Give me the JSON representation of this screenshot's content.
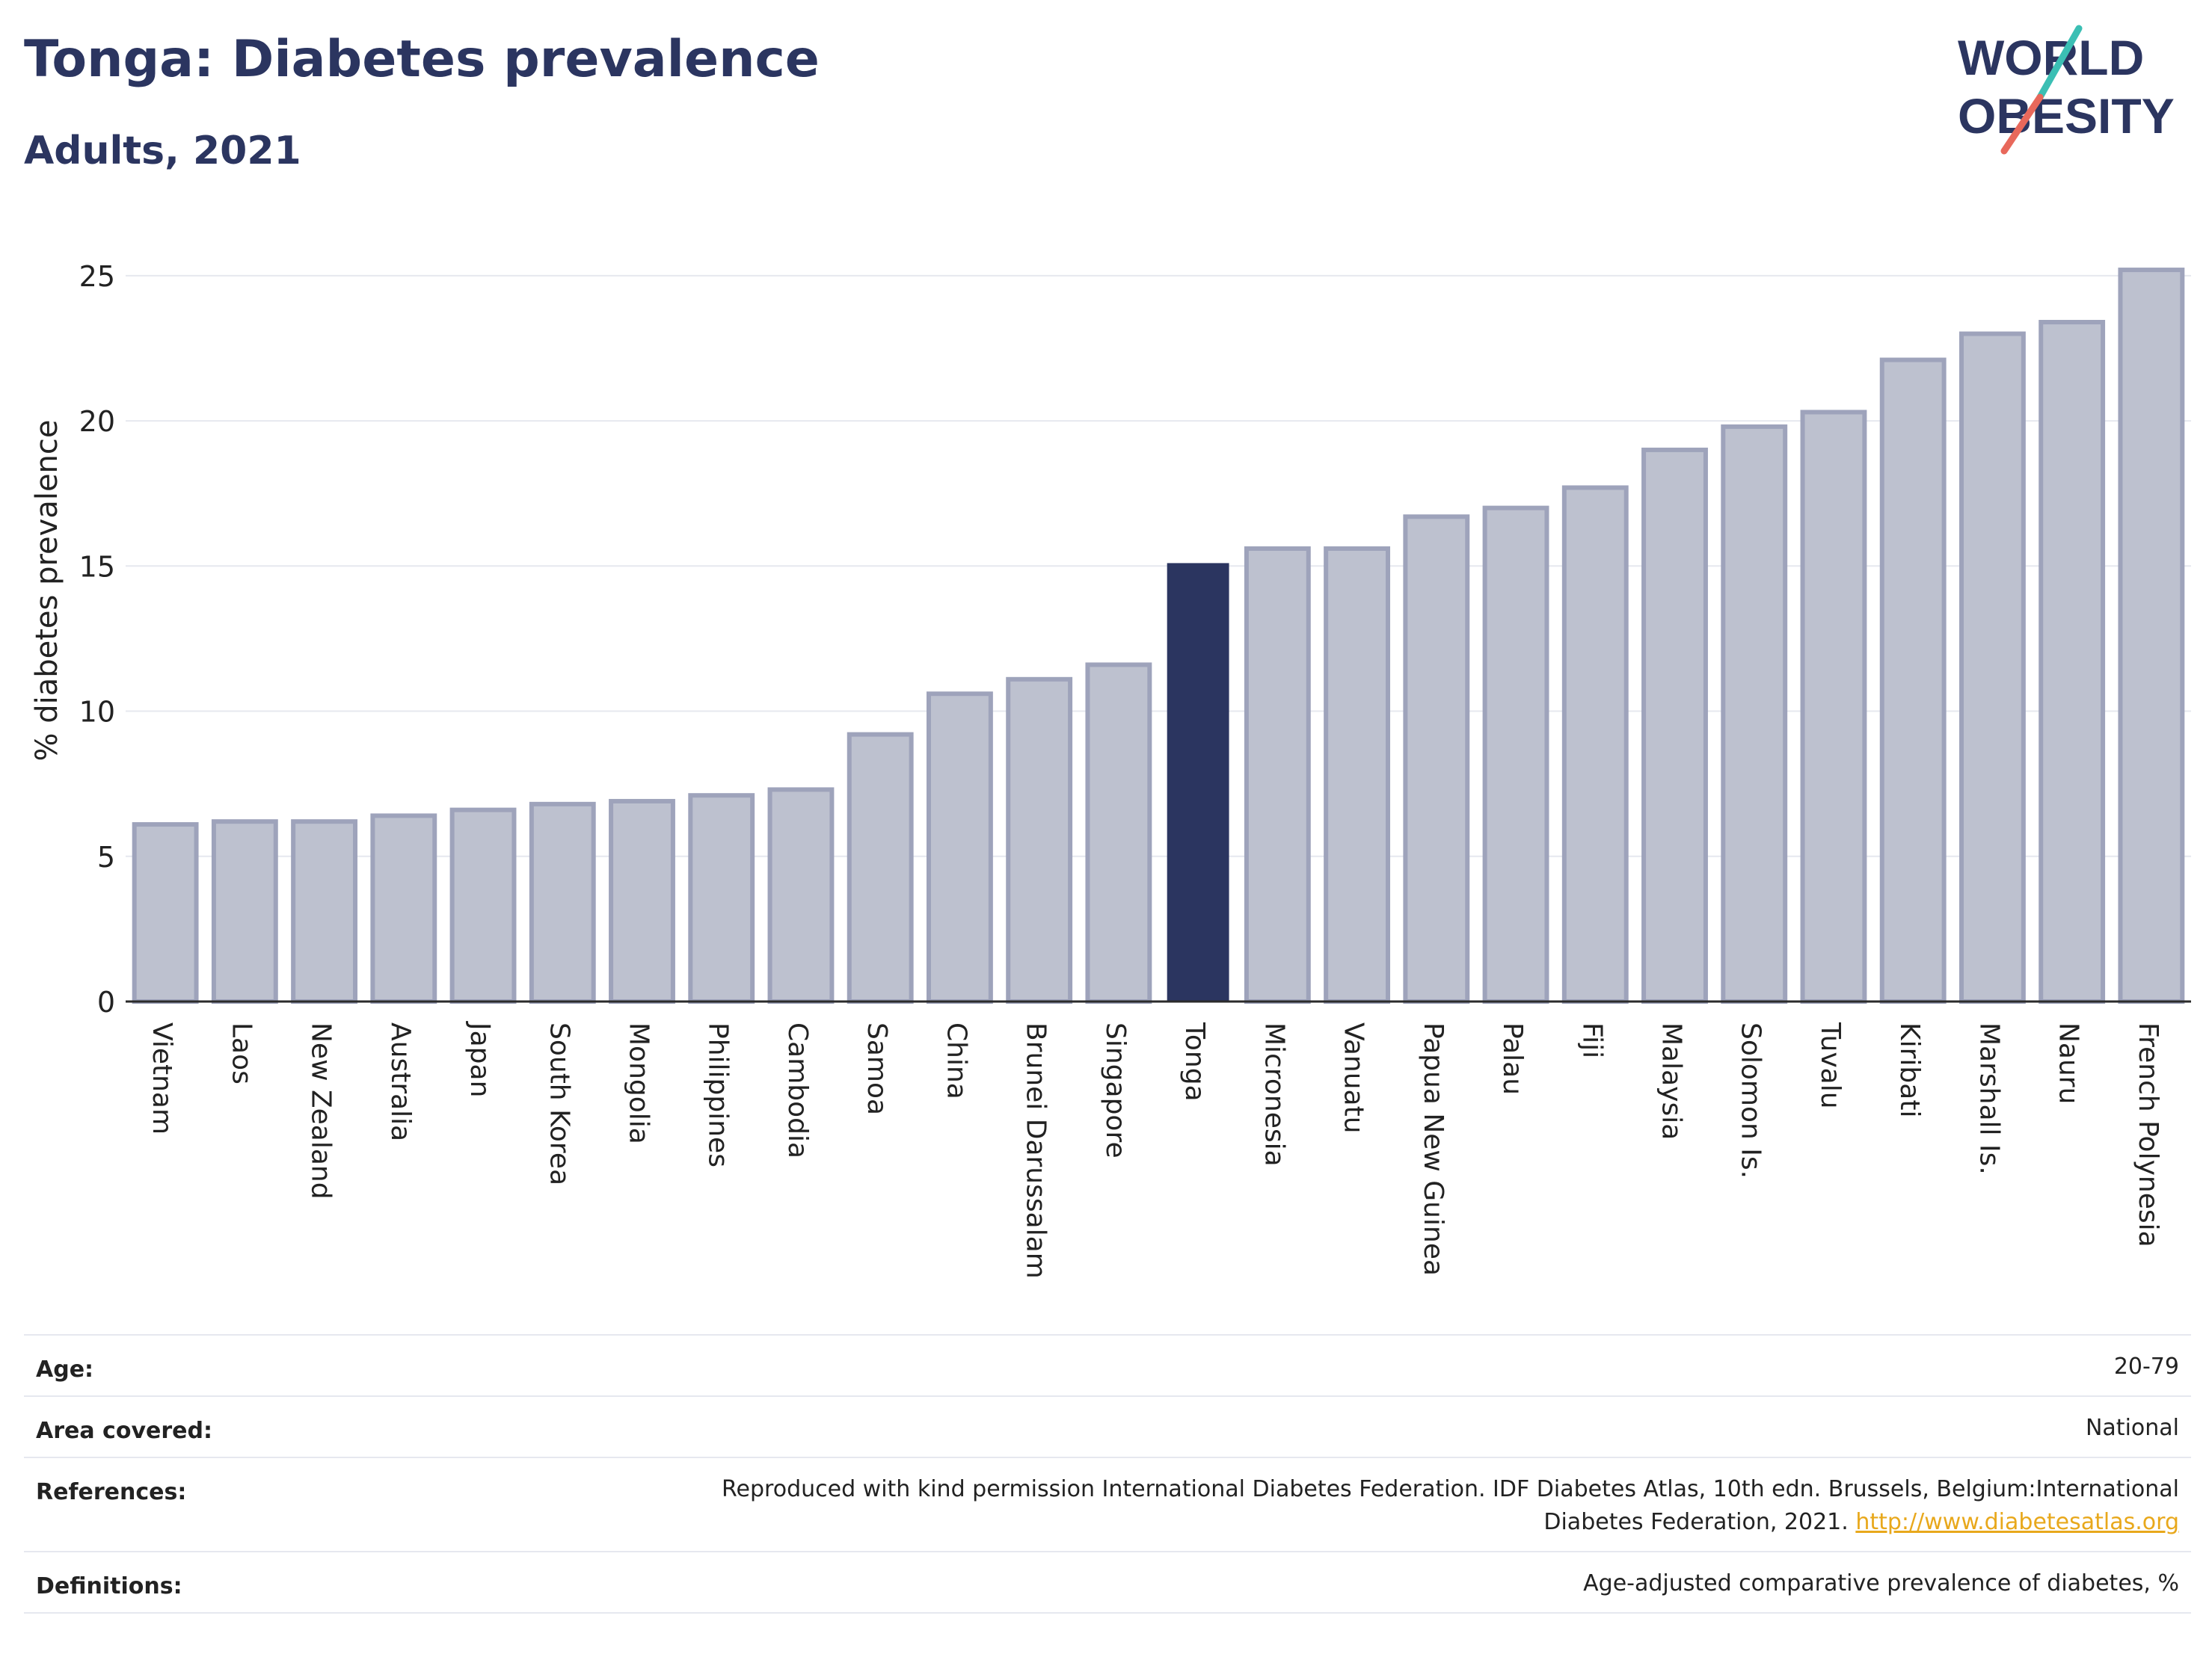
{
  "header": {
    "title": "Tonga: Diabetes prevalence",
    "subtitle": "Adults, 2021",
    "logo_line1": "WORLD",
    "logo_line2": "OBESITY"
  },
  "colors": {
    "highlight": "#2b3560",
    "bar_fill": "#bdc1cf",
    "bar_stroke": "#9ea3bb",
    "logo_teal": "#3bbfb4",
    "logo_coral": "#e8685b",
    "link": "#e8a81c"
  },
  "chart_data": {
    "type": "bar",
    "ylabel": "% diabetes prevalence",
    "ylim": [
      0,
      26
    ],
    "yticks": [
      0,
      5,
      10,
      15,
      20,
      25
    ],
    "grid": true,
    "highlight": "Tonga",
    "categories": [
      "Vietnam",
      "Laos",
      "New Zealand",
      "Australia",
      "Japan",
      "South Korea",
      "Mongolia",
      "Philippines",
      "Cambodia",
      "Samoa",
      "China",
      "Brunei Darussalam",
      "Singapore",
      "Tonga",
      "Micronesia",
      "Vanuatu",
      "Papua New Guinea",
      "Palau",
      "Fiji",
      "Malaysia",
      "Solomon Is.",
      "Tuvalu",
      "Kiribati",
      "Marshall Is.",
      "Nauru",
      "French Polynesia"
    ],
    "values": [
      6.1,
      6.2,
      6.2,
      6.4,
      6.6,
      6.8,
      6.9,
      7.1,
      7.3,
      9.2,
      10.6,
      11.1,
      11.6,
      15.1,
      15.6,
      15.6,
      16.7,
      17.0,
      17.7,
      19.0,
      19.8,
      20.3,
      22.1,
      23.0,
      23.4,
      25.2
    ]
  },
  "meta": {
    "age_label": "Age:",
    "age_value": "20-79",
    "area_label": "Area covered:",
    "area_value": "National",
    "references_label": "References:",
    "references_line1": "Reproduced with kind permission International Diabetes Federation.  IDF Diabetes Atlas, 10th edn. Brussels, Belgium:International",
    "references_line2": "Diabetes Federation, 2021.",
    "references_link": "http://www.diabetesatlas.org",
    "definitions_label": "Definitions:",
    "definitions_value": "Age-adjusted comparative prevalence of diabetes, %"
  }
}
